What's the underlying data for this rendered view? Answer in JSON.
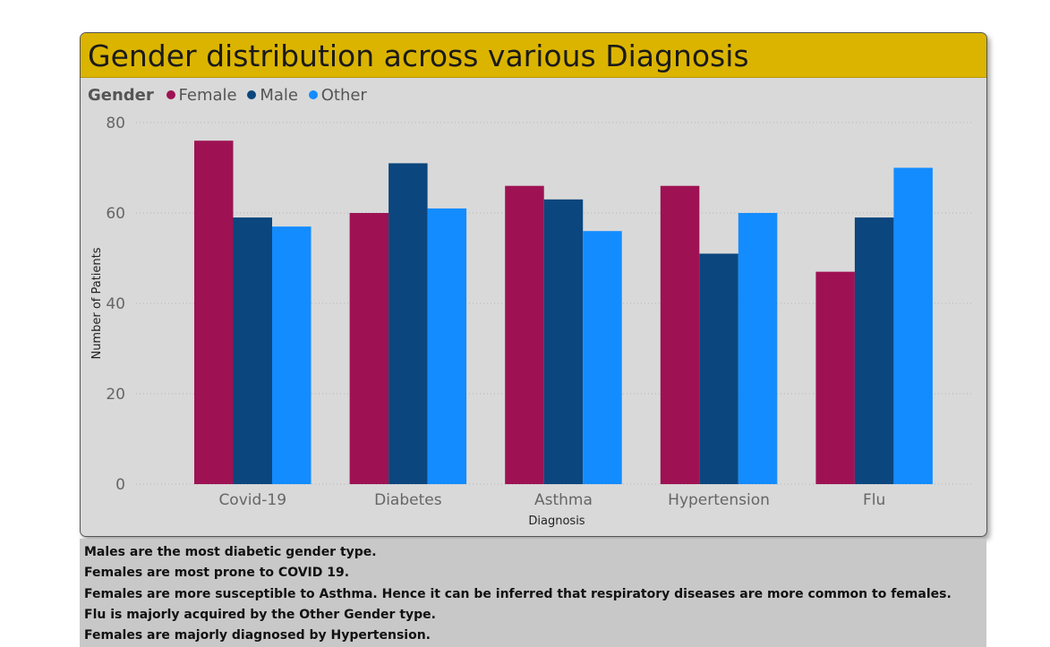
{
  "chart_data": {
    "type": "bar",
    "title": "Gender distribution across various Diagnosis",
    "legend_title": "Gender",
    "legend_position": "top-left",
    "xlabel": "Diagnosis",
    "ylabel": "Number of Patients",
    "ylim": [
      0,
      80
    ],
    "yticks": [
      0,
      20,
      40,
      60,
      80
    ],
    "grid": true,
    "categories": [
      "Covid-19",
      "Diabetes",
      "Asthma",
      "Hypertension",
      "Flu"
    ],
    "series": [
      {
        "name": "Female",
        "color": "#9e1253",
        "values": [
          76,
          60,
          66,
          66,
          47
        ]
      },
      {
        "name": "Male",
        "color": "#0b467e",
        "values": [
          59,
          71,
          63,
          51,
          59
        ]
      },
      {
        "name": "Other",
        "color": "#138cff",
        "values": [
          57,
          61,
          56,
          60,
          70
        ]
      }
    ]
  },
  "notes": [
    "Males are the most diabetic gender type.",
    "Females are most prone to COVID 19.",
    "Females are more susceptible to Asthma. Hence it can be inferred that respiratory diseases are more common to females.",
    "Flu is majorly acquired by the Other Gender type.",
    "Females are majorly diagnosed by Hypertension."
  ]
}
